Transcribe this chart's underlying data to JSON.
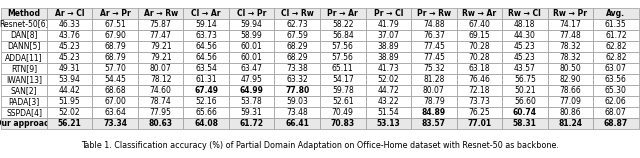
{
  "title": "Table 1. Classification accuracy (%) of Partial Domain Adaptation on Office-Home dataset with Resnet-50 as backbone.",
  "columns": [
    "Method",
    "Ar → Cl",
    "Ar → Pr",
    "Ar → Rw",
    "Cl → Ar",
    "Cl → Pr",
    "Cl → Rw",
    "Pr → Ar",
    "Pr → Cl",
    "Pr → Rw",
    "Rw → Ar",
    "Rw → Cl",
    "Rw → Pr",
    "Avg."
  ],
  "rows": [
    [
      "Resnet-50[6]",
      "46.33",
      "67.51",
      "75.87",
      "59.14",
      "59.94",
      "62.73",
      "58.22",
      "41.79",
      "74.88",
      "67.40",
      "48.18",
      "74.17",
      "61.35"
    ],
    [
      "DAN[8]",
      "43.76",
      "67.90",
      "77.47",
      "63.73",
      "58.99",
      "67.59",
      "56.84",
      "37.07",
      "76.37",
      "69.15",
      "44.30",
      "77.48",
      "61.72"
    ],
    [
      "DANN[5]",
      "45.23",
      "68.79",
      "79.21",
      "64.56",
      "60.01",
      "68.29",
      "57.56",
      "38.89",
      "77.45",
      "70.28",
      "45.23",
      "78.32",
      "62.82"
    ],
    [
      "ADDA[11]",
      "45.23",
      "68.79",
      "79.21",
      "64.56",
      "60.01",
      "68.29",
      "57.56",
      "38.89",
      "77.45",
      "70.28",
      "45.23",
      "78.32",
      "62.82"
    ],
    [
      "RTN[9]",
      "49.31",
      "57.70",
      "80.07",
      "63.54",
      "63.47",
      "73.38",
      "65.11",
      "41.73",
      "75.32",
      "63.18",
      "43.57",
      "80.50",
      "63.07"
    ],
    [
      "IWAN[13]",
      "53.94",
      "54.45",
      "78.12",
      "61.31",
      "47.95",
      "63.32",
      "54.17",
      "52.02",
      "81.28",
      "76.46",
      "56.75",
      "82.90",
      "63.56"
    ],
    [
      "SAN[2]",
      "44.42",
      "68.68",
      "74.60",
      "67.49",
      "64.99",
      "77.80",
      "59.78",
      "44.72",
      "80.07",
      "72.18",
      "50.21",
      "78.66",
      "65.30"
    ],
    [
      "PADA[3]",
      "51.95",
      "67.00",
      "78.74",
      "52.16",
      "53.78",
      "59.03",
      "52.61",
      "43.22",
      "78.79",
      "73.73",
      "56.60",
      "77.09",
      "62.06"
    ],
    [
      "SSPDA[4]",
      "52.02",
      "63.64",
      "77.95",
      "65.66",
      "59.31",
      "73.48",
      "70.49",
      "51.54",
      "84.89",
      "76.25",
      "60.74",
      "80.86",
      "68.07"
    ],
    [
      "Our approach",
      "56.21",
      "73.34",
      "80.63",
      "64.08",
      "61.72",
      "66.41",
      "70.83",
      "53.13",
      "83.57",
      "77.01",
      "58.31",
      "81.24",
      "68.87"
    ]
  ],
  "bold_cells": {
    "SAN[2]": [
      "Cl → Ar",
      "Cl → Pr",
      "Cl → Rw"
    ],
    "SSPDA[4]": [
      "Pr → Rw",
      "Rw → Cl"
    ],
    "Our approach": [
      "Ar → Cl",
      "Ar → Pr",
      "Ar → Rw",
      "Pr → Ar",
      "Pr → Cl"
    ]
  },
  "header_bg": "#e8e8e8",
  "last_row_bg": "#e8e8e8",
  "fig_width": 6.4,
  "fig_height": 1.58,
  "dpi": 100
}
